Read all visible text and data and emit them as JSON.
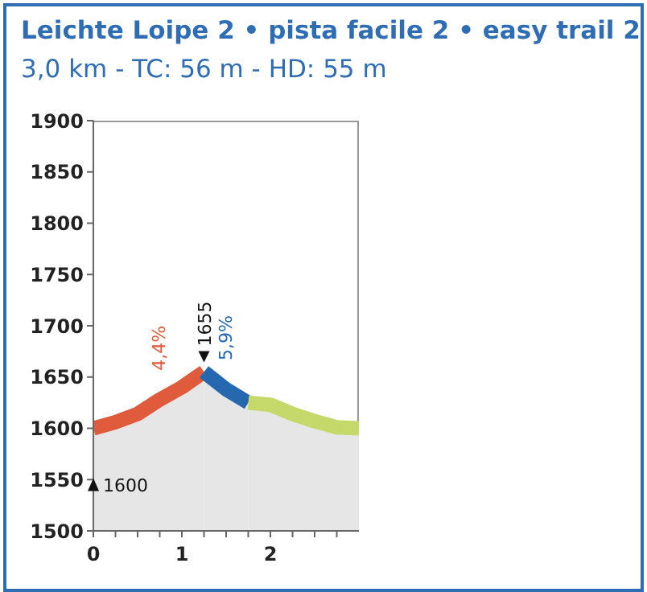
{
  "chart_data": {
    "type": "area",
    "title": "Leichte Loipe 2 • pista facile 2 • easy trail 2",
    "subtitle": "3,0 km - TC: 56 m - HD: 55 m",
    "series": [
      {
        "color": "#e05a3c",
        "x": [
          0,
          0.25,
          0.5,
          0.75,
          1,
          1.25
        ],
        "values": [
          1600,
          1606,
          1614,
          1628,
          1640,
          1655
        ]
      },
      {
        "color": "#2568b0",
        "x": [
          1.25,
          1.5,
          1.75
        ],
        "values": [
          1655,
          1638,
          1625
        ]
      },
      {
        "color": "#c5d86a",
        "x": [
          1.75,
          2,
          2.25,
          2.5,
          2.75,
          3
        ],
        "values": [
          1625,
          1623,
          1614,
          1607,
          1601,
          1600
        ]
      }
    ],
    "xlim": [
      0,
      3
    ],
    "xticks": [
      0,
      {
        "value": 0.25,
        "label": null
      },
      {
        "value": 0.5,
        "label": null
      },
      {
        "value": 0.75,
        "label": null
      },
      1,
      {
        "value": 1.25,
        "label": null
      },
      {
        "value": 1.5,
        "label": null
      },
      {
        "value": 1.75,
        "label": null
      },
      2,
      {
        "value": 2.25,
        "label": null
      },
      {
        "value": 2.5,
        "label": null
      },
      {
        "value": 2.75,
        "label": null
      }
    ],
    "ylim": [
      1500,
      1900
    ],
    "yticks": [
      1500,
      1550,
      1600,
      1650,
      1700,
      1750,
      1800,
      1850,
      1900
    ],
    "annotations": [
      "4,4%",
      {
        "text": "1655",
        "x": 1.25,
        "y": 1655
      },
      "5,9%",
      {
        "text": "1600",
        "x": 0,
        "y": 1600
      }
    ]
  }
}
